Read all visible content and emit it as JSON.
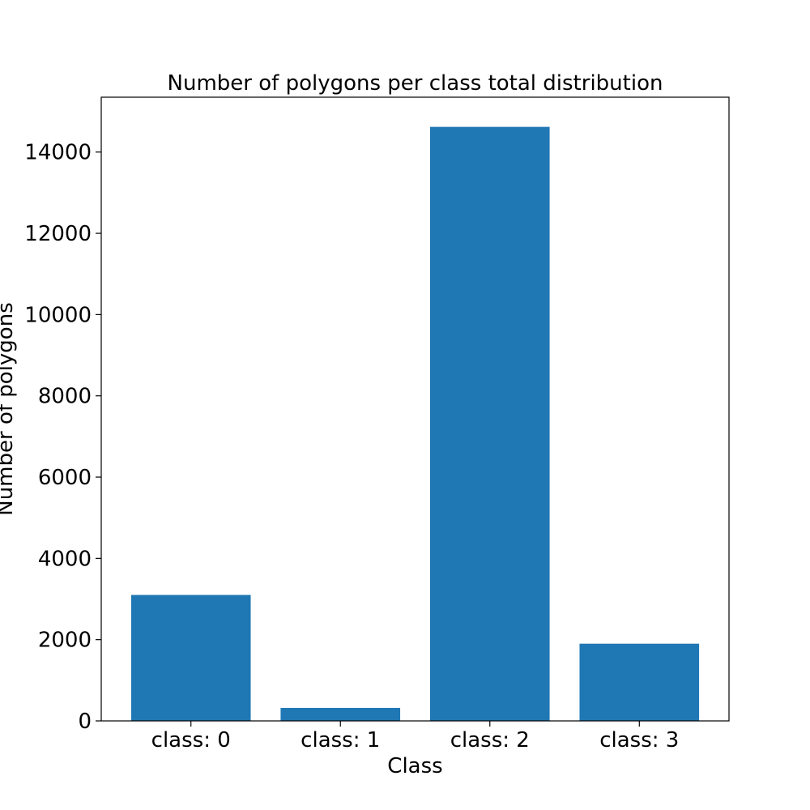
{
  "chart_data": {
    "type": "bar",
    "title": "Number of polygons per class total distribution",
    "xlabel": "Class",
    "ylabel": "Number of polygons",
    "categories": [
      "class: 0",
      "class: 1",
      "class: 2",
      "class: 3"
    ],
    "values": [
      3100,
      320,
      14620,
      1900
    ],
    "ylim": [
      0,
      15350
    ],
    "yticks": [
      0,
      2000,
      4000,
      6000,
      8000,
      10000,
      12000,
      14000
    ],
    "bar_color": "#1f77b4",
    "grid": false,
    "legend": "none"
  }
}
